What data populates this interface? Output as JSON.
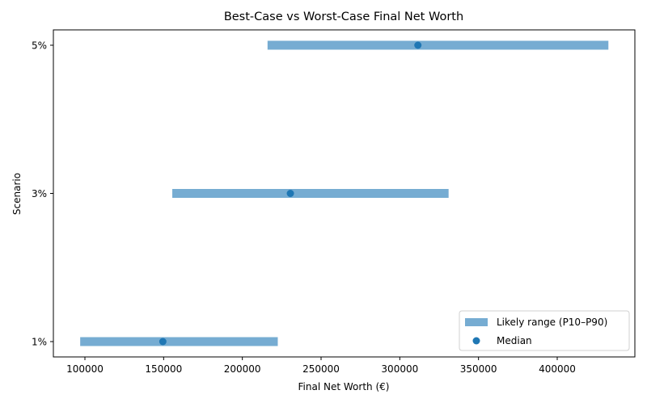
{
  "chart_data": {
    "type": "range-dot",
    "title": "Best-Case vs Worst-Case Final Net Worth",
    "xlabel": "Final Net Worth (€)",
    "ylabel": "Scenario",
    "xlim": [
      80000,
      450000
    ],
    "xticks": [
      100000,
      150000,
      200000,
      250000,
      300000,
      350000,
      400000
    ],
    "xtick_labels": [
      "100000",
      "150000",
      "200000",
      "250000",
      "300000",
      "350000",
      "400000"
    ],
    "categories": [
      "1%",
      "3%",
      "5%"
    ],
    "series": [
      {
        "name": "Likely range (P10–P90)",
        "kind": "range",
        "color": "#76acd2",
        "low": [
          97000,
          155500,
          216000
        ],
        "high": [
          222500,
          331000,
          432500
        ]
      },
      {
        "name": "Median",
        "kind": "scatter",
        "color": "#1f77b4",
        "values": [
          149500,
          230500,
          311500
        ]
      }
    ],
    "grid": false,
    "legend_position": "lower right"
  }
}
